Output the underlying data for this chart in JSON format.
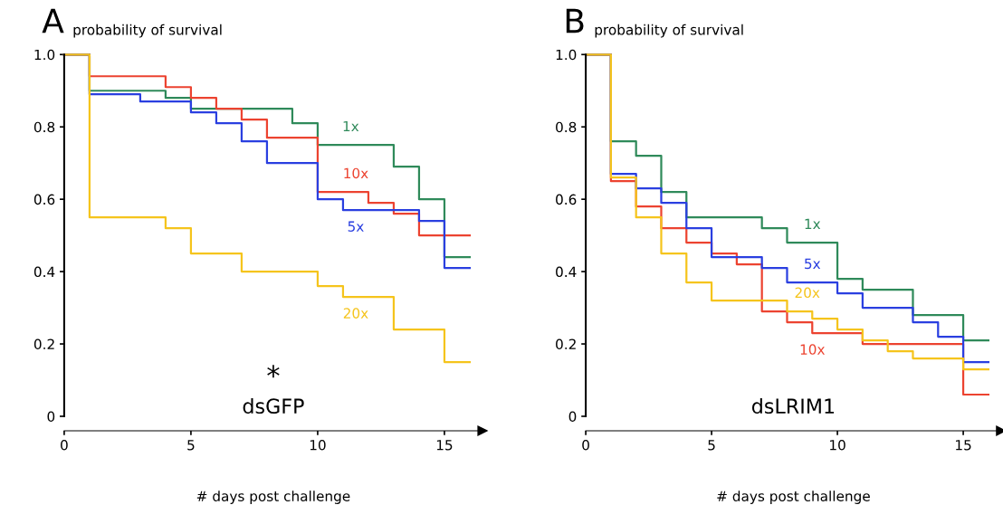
{
  "chart_data": [
    {
      "type": "step",
      "title": "A",
      "ylabel": "probability of survival",
      "xlabel": "# days post challenge",
      "xlim": [
        0,
        16.5
      ],
      "ylim": [
        -0.04,
        1.0
      ],
      "xticks": [
        0,
        5,
        10,
        15
      ],
      "yticks": [
        {
          "value": 1.0,
          "label": "1.0"
        },
        {
          "value": 0.8,
          "label": "0.8"
        },
        {
          "value": 0.6,
          "label": "0.6"
        },
        {
          "value": 0.4,
          "label": "0.4"
        },
        {
          "value": 0.2,
          "label": "0.2"
        },
        0
      ],
      "grid": false,
      "legend": false,
      "annotations": [
        "*",
        "dsGFP"
      ],
      "series": [
        {
          "name": "1x",
          "color": "#2f8a5a",
          "x": [
            0,
            1,
            4,
            5,
            9,
            10,
            13,
            14,
            15,
            16
          ],
          "values": [
            1.0,
            0.9,
            0.88,
            0.85,
            0.81,
            0.75,
            0.69,
            0.6,
            0.44,
            0.44
          ]
        },
        {
          "name": "10x",
          "color": "#ec4330",
          "x": [
            0,
            1,
            4,
            5,
            6,
            7,
            8,
            10,
            12,
            13,
            14,
            16
          ],
          "values": [
            1.0,
            0.94,
            0.91,
            0.88,
            0.85,
            0.82,
            0.77,
            0.62,
            0.59,
            0.56,
            0.5,
            0.5
          ]
        },
        {
          "name": "5x",
          "color": "#2a3fe0",
          "x": [
            0,
            1,
            3,
            5,
            6,
            7,
            8,
            10,
            11,
            14,
            15,
            16
          ],
          "values": [
            1.0,
            0.89,
            0.87,
            0.84,
            0.81,
            0.76,
            0.7,
            0.6,
            0.57,
            0.54,
            0.41,
            0.41
          ]
        },
        {
          "name": "20x",
          "color": "#f5c41c",
          "x": [
            0,
            1,
            4,
            5,
            7,
            10,
            11,
            13,
            15,
            16
          ],
          "values": [
            1.0,
            0.55,
            0.52,
            0.45,
            0.4,
            0.36,
            0.33,
            0.24,
            0.15,
            0.15
          ]
        }
      ]
    },
    {
      "type": "step",
      "title": "B",
      "ylabel": "probability of survival",
      "xlabel": "# days post challenge",
      "xlim": [
        0,
        16.5
      ],
      "ylim": [
        -0.04,
        1.0
      ],
      "xticks": [
        0,
        5,
        10,
        15
      ],
      "yticks": [
        {
          "value": 1.0,
          "label": "1.0"
        },
        {
          "value": 0.8,
          "label": "0.8"
        },
        {
          "value": 0.6,
          "label": "0.6"
        },
        {
          "value": 0.4,
          "label": "0.4"
        },
        {
          "value": 0.2,
          "label": "0.2"
        },
        0
      ],
      "grid": false,
      "legend": false,
      "annotations": [
        "dsLRIM1"
      ],
      "series": [
        {
          "name": "1x",
          "color": "#2f8a5a",
          "x": [
            0,
            1,
            2,
            3,
            4,
            7,
            8,
            10,
            11,
            13,
            15,
            16
          ],
          "values": [
            1.0,
            0.76,
            0.72,
            0.62,
            0.55,
            0.52,
            0.48,
            0.38,
            0.35,
            0.28,
            0.21,
            0.21
          ]
        },
        {
          "name": "10x",
          "color": "#ec4330",
          "x": [
            0,
            1,
            2,
            3,
            4,
            5,
            6,
            7,
            8,
            9,
            11,
            15,
            16
          ],
          "values": [
            1.0,
            0.65,
            0.58,
            0.52,
            0.48,
            0.45,
            0.42,
            0.29,
            0.26,
            0.23,
            0.2,
            0.06,
            0.06
          ]
        },
        {
          "name": "5x",
          "color": "#2a3fe0",
          "x": [
            0,
            1,
            2,
            3,
            4,
            5,
            7,
            8,
            10,
            11,
            13,
            14,
            15,
            16
          ],
          "values": [
            1.0,
            0.67,
            0.63,
            0.59,
            0.52,
            0.44,
            0.41,
            0.37,
            0.34,
            0.3,
            0.26,
            0.22,
            0.15,
            0.15
          ]
        },
        {
          "name": "20x",
          "color": "#f5c41c",
          "x": [
            0,
            1,
            2,
            3,
            4,
            5,
            8,
            9,
            10,
            11,
            12,
            13,
            15,
            16
          ],
          "values": [
            1.0,
            0.66,
            0.55,
            0.45,
            0.37,
            0.32,
            0.29,
            0.27,
            0.24,
            0.21,
            0.18,
            0.16,
            0.13,
            0.13
          ]
        }
      ]
    }
  ]
}
